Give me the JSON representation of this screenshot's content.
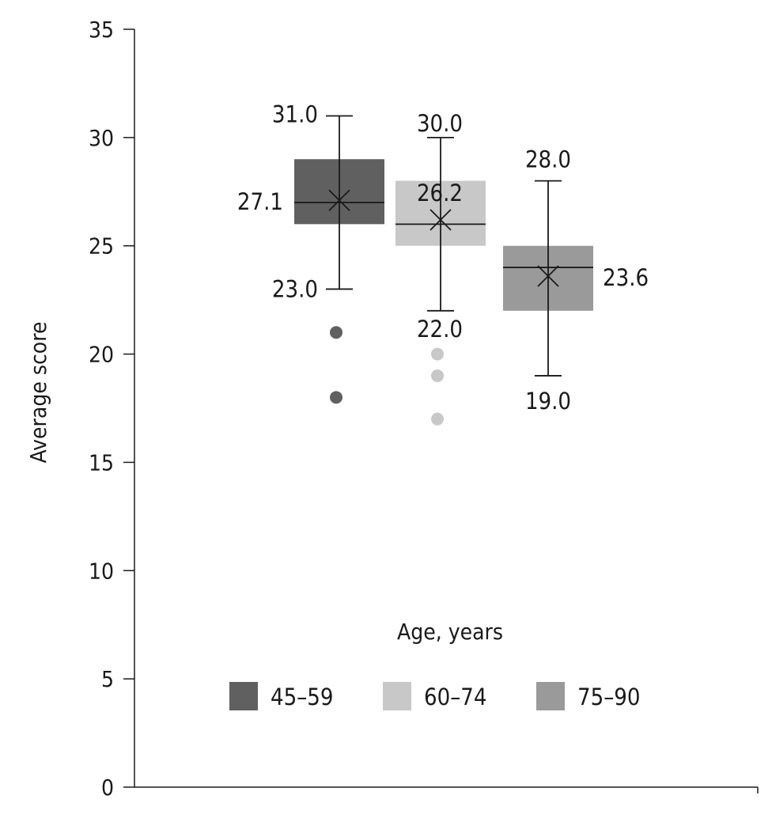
{
  "chart_data": {
    "type": "box",
    "title": "",
    "ylabel": "Average score",
    "xlabel": "",
    "ylim": [
      0,
      35
    ],
    "yticks": [
      0,
      5,
      10,
      15,
      20,
      25,
      30,
      35
    ],
    "grid": false,
    "legend_title": "Age, years",
    "legend_position": "lower-center",
    "series": [
      {
        "name": "45–59",
        "color": "#606060",
        "whisker_low": 23.0,
        "q1": 26.0,
        "median": 27.0,
        "q3": 29.0,
        "whisker_high": 31.0,
        "mean": 27.1,
        "outliers": [
          21,
          18
        ],
        "labels": {
          "max": "31.0",
          "min": "23.0",
          "mean": "27.1"
        }
      },
      {
        "name": "60–74",
        "color": "#c8c8c8",
        "whisker_low": 22.0,
        "q1": 25.0,
        "median": 26.0,
        "q3": 28.0,
        "whisker_high": 30.0,
        "mean": 26.2,
        "outliers": [
          20,
          19,
          17
        ],
        "labels": {
          "max": "30.0",
          "min": "22.0",
          "mean": "26.2"
        }
      },
      {
        "name": "75–90",
        "color": "#9a9a9a",
        "whisker_low": 19.0,
        "q1": 22.0,
        "median": 24.0,
        "q3": 25.0,
        "whisker_high": 28.0,
        "mean": 23.6,
        "outliers": [],
        "labels": {
          "max": "28.0",
          "min": "19.0",
          "mean": "23.6"
        }
      }
    ]
  }
}
